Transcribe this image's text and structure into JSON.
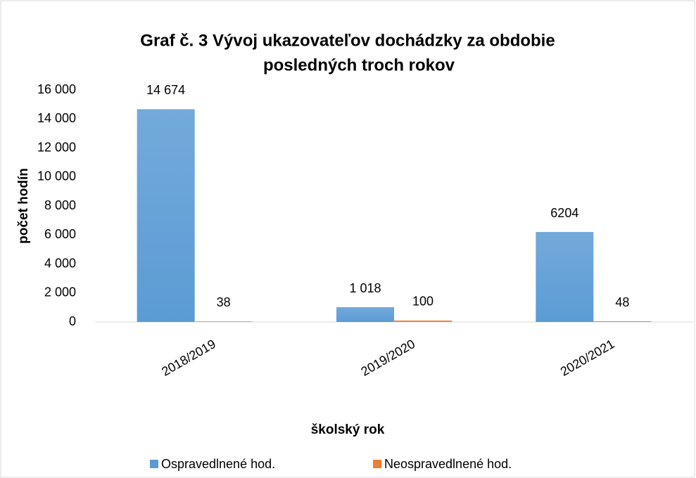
{
  "chart_data": {
    "type": "bar",
    "title": [
      "Graf č. 3    Vývoj ukazovateľov dochádzky za obdobie",
      "posledných troch rokov"
    ],
    "x_label": "školský rok",
    "y_label": "počet hodín",
    "categories": [
      "2018/2019",
      "2019/2020",
      "2020/2021"
    ],
    "series": [
      {
        "name": "Ospravedlnené hod.",
        "color": "#5b9bd5",
        "values": [
          14674,
          1018,
          6204
        ],
        "value_labels": [
          "14 674",
          "1 018",
          "6204"
        ]
      },
      {
        "name": "Neospravedlnené hod.",
        "color": "#ed7d31",
        "values": [
          38,
          100,
          48
        ],
        "value_labels": [
          "38",
          "100",
          "48"
        ]
      }
    ],
    "ylim": [
      0,
      16000
    ],
    "yticks": [
      0,
      {
        "value": 2000,
        "label": "2 000"
      },
      {
        "value": 4000,
        "label": "4 000"
      },
      {
        "value": 6000,
        "label": "6 000"
      },
      {
        "value": 8000,
        "label": "8 000"
      },
      {
        "value": 10000,
        "label": "10 000"
      },
      {
        "value": 12000,
        "label": "12 000"
      },
      {
        "value": 14000,
        "label": "14 000"
      },
      {
        "value": 16000,
        "label": "16 000"
      }
    ],
    "grid": false,
    "legend": "bottom"
  }
}
